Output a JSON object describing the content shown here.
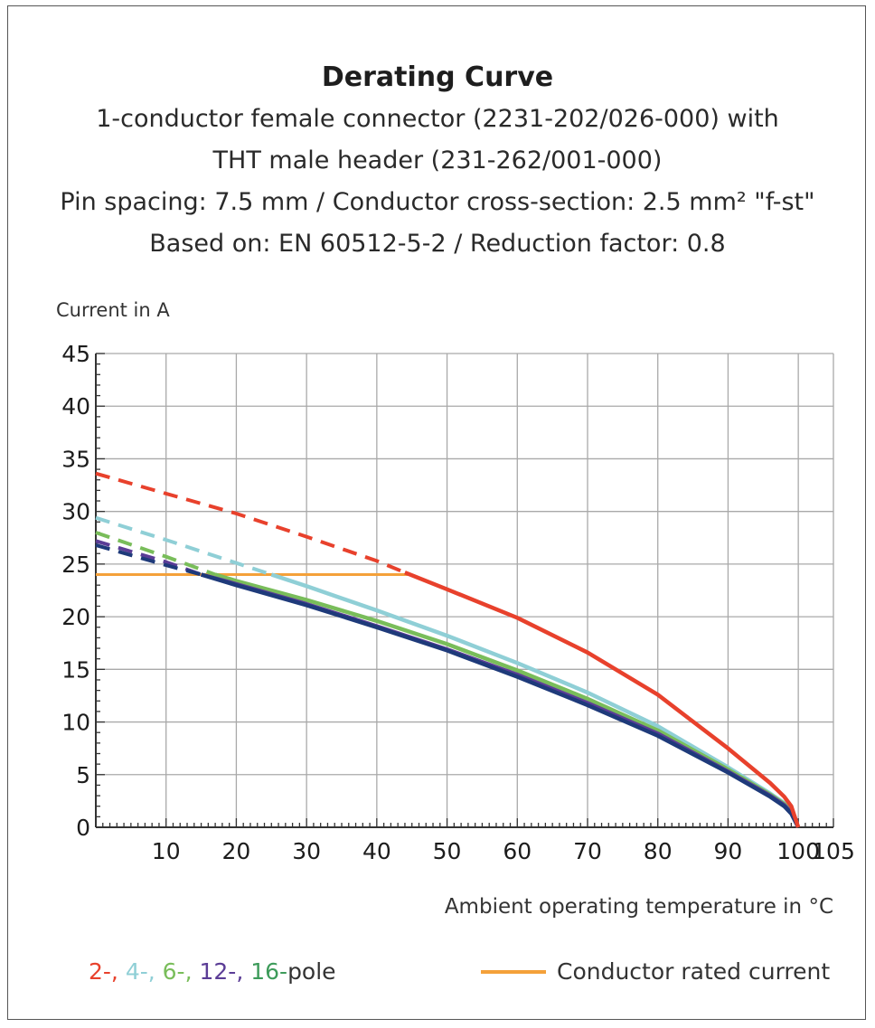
{
  "chart_data": {
    "type": "line",
    "title": "Derating Curve",
    "subtitle_lines": [
      "1-conductor female connector (2231-202/026-000) with",
      "THT male header (231-262/001-000)",
      "Pin spacing: 7.5 mm / Conductor cross-section: 2.5 mm² \"f-st\"",
      "Based on: EN 60512-5-2 / Reduction factor: 0.8"
    ],
    "ylabel": "Current in A",
    "xlabel": "Ambient operating temperature in °C",
    "xlim": [
      0,
      105
    ],
    "ylim": [
      0,
      45
    ],
    "x_ticks": [
      "10",
      "20",
      "30",
      "40",
      "50",
      "60",
      "70",
      "80",
      "90",
      "100",
      "105"
    ],
    "y_ticks": [
      "0",
      "5",
      "10",
      "15",
      "20",
      "25",
      "30",
      "35",
      "40",
      "45"
    ],
    "grid": true,
    "series": [
      {
        "name": "2-",
        "color": "#e8412c",
        "dashed": {
          "x": [
            0,
            10,
            20,
            30,
            40,
            44
          ],
          "y": [
            33.6,
            31.7,
            29.8,
            27.6,
            25.3,
            24.2
          ]
        },
        "solid": {
          "x": [
            44,
            50,
            60,
            70,
            80,
            90,
            96,
            98,
            99,
            100
          ],
          "y": [
            24.2,
            22.6,
            19.9,
            16.6,
            12.6,
            7.5,
            4.2,
            2.9,
            2.0,
            0
          ]
        }
      },
      {
        "name": "4-",
        "color": "#8fcfd6",
        "dashed": {
          "x": [
            0,
            10,
            20,
            25
          ],
          "y": [
            29.4,
            27.3,
            25.1,
            24.0
          ]
        },
        "solid": {
          "x": [
            25,
            30,
            40,
            50,
            60,
            70,
            80,
            90,
            96,
            98,
            99,
            100
          ],
          "y": [
            24.0,
            22.9,
            20.6,
            18.2,
            15.6,
            12.8,
            9.6,
            5.7,
            3.2,
            2.3,
            1.6,
            0
          ]
        }
      },
      {
        "name": "6-",
        "color": "#79bd5a",
        "dashed": {
          "x": [
            0,
            10,
            17
          ],
          "y": [
            28.0,
            25.7,
            24.0
          ]
        },
        "solid": {
          "x": [
            17,
            20,
            30,
            40,
            50,
            60,
            70,
            80,
            90,
            96,
            98,
            99,
            100
          ],
          "y": [
            24.0,
            23.4,
            21.6,
            19.6,
            17.4,
            14.9,
            12.2,
            9.2,
            5.5,
            3.1,
            2.2,
            1.5,
            0
          ]
        }
      },
      {
        "name": "12-",
        "color": "#5b3d96",
        "dashed": {
          "x": [
            0,
            10,
            15
          ],
          "y": [
            27.2,
            25.2,
            24.0
          ]
        },
        "solid": {
          "x": [
            15,
            20,
            30,
            40,
            50,
            60,
            70,
            80,
            90,
            96,
            98,
            99,
            100
          ],
          "y": [
            24.0,
            23.1,
            21.2,
            19.1,
            16.9,
            14.5,
            11.8,
            8.9,
            5.3,
            3.0,
            2.1,
            1.4,
            0
          ]
        }
      },
      {
        "name": "16-",
        "color": "#1e3a7a",
        "dashed": {
          "x": [
            0,
            10,
            15
          ],
          "y": [
            26.8,
            24.9,
            24.0
          ]
        },
        "solid": {
          "x": [
            15,
            20,
            30,
            40,
            50,
            60,
            70,
            80,
            90,
            96,
            98,
            99,
            100
          ],
          "y": [
            24.0,
            23.0,
            21.1,
            19.0,
            16.8,
            14.3,
            11.6,
            8.7,
            5.2,
            2.9,
            2.0,
            1.3,
            0
          ]
        }
      }
    ],
    "reference_line": {
      "name": "Conductor rated current",
      "color": "#f4a13a",
      "x": [
        0,
        45
      ],
      "y": [
        24,
        24
      ]
    },
    "legend": {
      "placement": "bottom",
      "pole_parts": [
        {
          "text": "2-, ",
          "color": "#e8412c"
        },
        {
          "text": "4-, ",
          "color": "#8fcfd6"
        },
        {
          "text": "6-, ",
          "color": "#79bd5a"
        },
        {
          "text": "12-, ",
          "color": "#5b3d96"
        },
        {
          "text": "16-",
          "color": "#3d9b5a"
        },
        {
          "text": "pole",
          "color": "#333333"
        }
      ],
      "rated_label": "Conductor rated current"
    }
  }
}
